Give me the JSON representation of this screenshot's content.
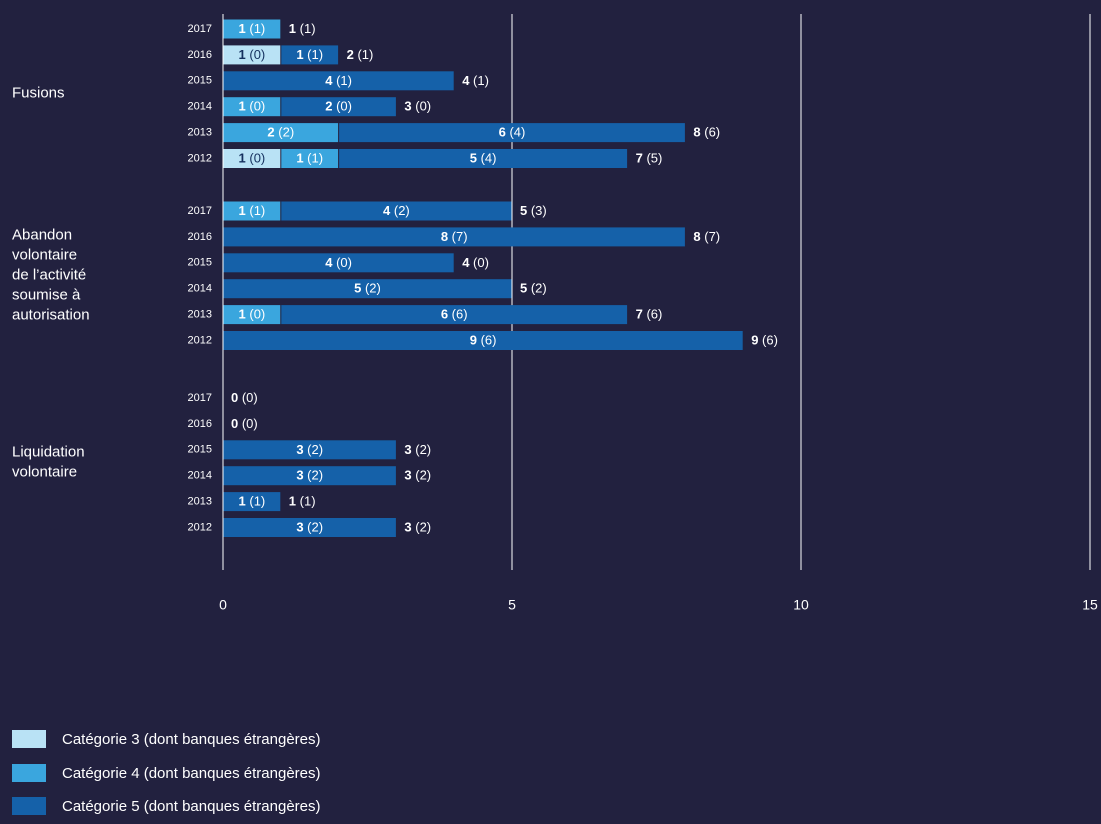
{
  "colors": {
    "background": "#22213f",
    "cat3": "#b9e2f5",
    "cat4": "#3aa6de",
    "cat5": "#1561a9",
    "gridline": "#ffffff",
    "text": "#ffffff"
  },
  "chart_data": {
    "type": "bar",
    "orientation": "horizontal",
    "stacked": true,
    "xlim": [
      0,
      15
    ],
    "xticks": [
      "0",
      "5",
      "10",
      "15"
    ],
    "grid": true,
    "legend_position": "bottom-left",
    "series": [
      {
        "key": "cat3",
        "name": "Catégorie 3 (dont banques étrangères)"
      },
      {
        "key": "cat4",
        "name": "Catégorie 4 (dont banques étrangères)"
      },
      {
        "key": "cat5",
        "name": "Catégorie 5 (dont banques étrangères)"
      }
    ],
    "groups": [
      {
        "name": "Fusions",
        "label_lines": [
          "Fusions"
        ],
        "rows": [
          {
            "year": "2017",
            "segments": [
              {
                "series": "cat4",
                "value": 1,
                "foreign": 1
              }
            ],
            "total": 1,
            "total_foreign": 1
          },
          {
            "year": "2016",
            "segments": [
              {
                "series": "cat3",
                "value": 1,
                "foreign": 0
              },
              {
                "series": "cat5",
                "value": 1,
                "foreign": 1
              }
            ],
            "total": 2,
            "total_foreign": 1
          },
          {
            "year": "2015",
            "segments": [
              {
                "series": "cat5",
                "value": 4,
                "foreign": 1
              }
            ],
            "total": 4,
            "total_foreign": 1
          },
          {
            "year": "2014",
            "segments": [
              {
                "series": "cat4",
                "value": 1,
                "foreign": 0
              },
              {
                "series": "cat5",
                "value": 2,
                "foreign": 0
              }
            ],
            "total": 3,
            "total_foreign": 0
          },
          {
            "year": "2013",
            "segments": [
              {
                "series": "cat4",
                "value": 2,
                "foreign": 2
              },
              {
                "series": "cat5",
                "value": 6,
                "foreign": 4
              }
            ],
            "total": 8,
            "total_foreign": 6
          },
          {
            "year": "2012",
            "segments": [
              {
                "series": "cat3",
                "value": 1,
                "foreign": 0
              },
              {
                "series": "cat4",
                "value": 1,
                "foreign": 1
              },
              {
                "series": "cat5",
                "value": 5,
                "foreign": 4
              }
            ],
            "total": 7,
            "total_foreign": 5
          }
        ]
      },
      {
        "name": "Abandon volontaire de l’activité soumise à autorisation",
        "label_lines": [
          "Abandon",
          "volontaire",
          "de l’activité",
          "soumise à",
          "autorisation"
        ],
        "rows": [
          {
            "year": "2017",
            "segments": [
              {
                "series": "cat4",
                "value": 1,
                "foreign": 1
              },
              {
                "series": "cat5",
                "value": 4,
                "foreign": 2
              }
            ],
            "total": 5,
            "total_foreign": 3
          },
          {
            "year": "2016",
            "segments": [
              {
                "series": "cat5",
                "value": 8,
                "foreign": 7
              }
            ],
            "total": 8,
            "total_foreign": 7
          },
          {
            "year": "2015",
            "segments": [
              {
                "series": "cat5",
                "value": 4,
                "foreign": 0
              }
            ],
            "total": 4,
            "total_foreign": 0
          },
          {
            "year": "2014",
            "segments": [
              {
                "series": "cat5",
                "value": 5,
                "foreign": 2
              }
            ],
            "total": 5,
            "total_foreign": 2
          },
          {
            "year": "2013",
            "segments": [
              {
                "series": "cat4",
                "value": 1,
                "foreign": 0
              },
              {
                "series": "cat5",
                "value": 6,
                "foreign": 6
              }
            ],
            "total": 7,
            "total_foreign": 6
          },
          {
            "year": "2012",
            "segments": [
              {
                "series": "cat5",
                "value": 9,
                "foreign": 6
              }
            ],
            "total": 9,
            "total_foreign": 6
          }
        ]
      },
      {
        "name": "Liquidation volontaire",
        "label_lines": [
          "Liquidation",
          "volontaire"
        ],
        "rows": [
          {
            "year": "2017",
            "segments": [],
            "total": 0,
            "total_foreign": 0
          },
          {
            "year": "2016",
            "segments": [],
            "total": 0,
            "total_foreign": 0
          },
          {
            "year": "2015",
            "segments": [
              {
                "series": "cat5",
                "value": 3,
                "foreign": 2
              }
            ],
            "total": 3,
            "total_foreign": 2
          },
          {
            "year": "2014",
            "segments": [
              {
                "series": "cat5",
                "value": 3,
                "foreign": 2
              }
            ],
            "total": 3,
            "total_foreign": 2
          },
          {
            "year": "2013",
            "segments": [
              {
                "series": "cat5",
                "value": 1,
                "foreign": 1
              }
            ],
            "total": 1,
            "total_foreign": 1
          },
          {
            "year": "2012",
            "segments": [
              {
                "series": "cat5",
                "value": 3,
                "foreign": 2
              }
            ],
            "total": 3,
            "total_foreign": 2
          }
        ]
      }
    ]
  }
}
